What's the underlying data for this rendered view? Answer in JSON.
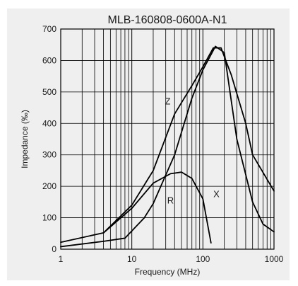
{
  "chart_data": {
    "type": "line",
    "title": "MLB-160808-0600A-N1",
    "xlabel": "Frequency (MHz)",
    "ylabel": "Impedance (‰)",
    "xscale": "log",
    "xlim": [
      1,
      1000
    ],
    "ylim": [
      0,
      700
    ],
    "grid": true,
    "legend": "none",
    "x_tick_labels": [
      {
        "value": 1,
        "label": "1"
      },
      {
        "value": 10,
        "label": "10"
      },
      {
        "value": 100,
        "label": "100"
      },
      {
        "value": 1000,
        "label": "1000"
      }
    ],
    "y_tick_labels": [
      {
        "value": 0,
        "label": "0"
      },
      {
        "value": 100,
        "label": "100"
      },
      {
        "value": 200,
        "label": "200"
      },
      {
        "value": 300,
        "label": "300"
      },
      {
        "value": 400,
        "label": "400"
      },
      {
        "value": 500,
        "label": "500"
      },
      {
        "value": 600,
        "label": "600"
      },
      {
        "value": 700,
        "label": "700"
      }
    ],
    "series": [
      {
        "name": "Z",
        "color": "#000000",
        "label_at": {
          "x": 32,
          "y": 460
        },
        "points": [
          [
            1,
            22
          ],
          [
            4,
            52
          ],
          [
            10,
            140
          ],
          [
            20,
            250
          ],
          [
            40,
            430
          ],
          [
            70,
            520
          ],
          [
            100,
            580
          ],
          [
            140,
            640
          ],
          [
            180,
            640
          ],
          [
            250,
            555
          ],
          [
            400,
            400
          ],
          [
            500,
            300
          ],
          [
            1000,
            185
          ]
        ]
      },
      {
        "name": "X",
        "color": "#000000",
        "label_at": {
          "x": 155,
          "y": 165
        },
        "points": [
          [
            1,
            8
          ],
          [
            4,
            25
          ],
          [
            8,
            35
          ],
          [
            15,
            100
          ],
          [
            20,
            145
          ],
          [
            40,
            300
          ],
          [
            70,
            480
          ],
          [
            100,
            570
          ],
          [
            150,
            645
          ],
          [
            200,
            625
          ],
          [
            300,
            350
          ],
          [
            500,
            150
          ],
          [
            700,
            80
          ],
          [
            1000,
            55
          ]
        ]
      },
      {
        "name": "R",
        "color": "#000000",
        "label_at": {
          "x": 35,
          "y": 145
        },
        "points": [
          [
            4,
            52
          ],
          [
            10,
            130
          ],
          [
            20,
            210
          ],
          [
            35,
            240
          ],
          [
            50,
            245
          ],
          [
            70,
            225
          ],
          [
            100,
            160
          ],
          [
            130,
            20
          ]
        ]
      }
    ]
  }
}
